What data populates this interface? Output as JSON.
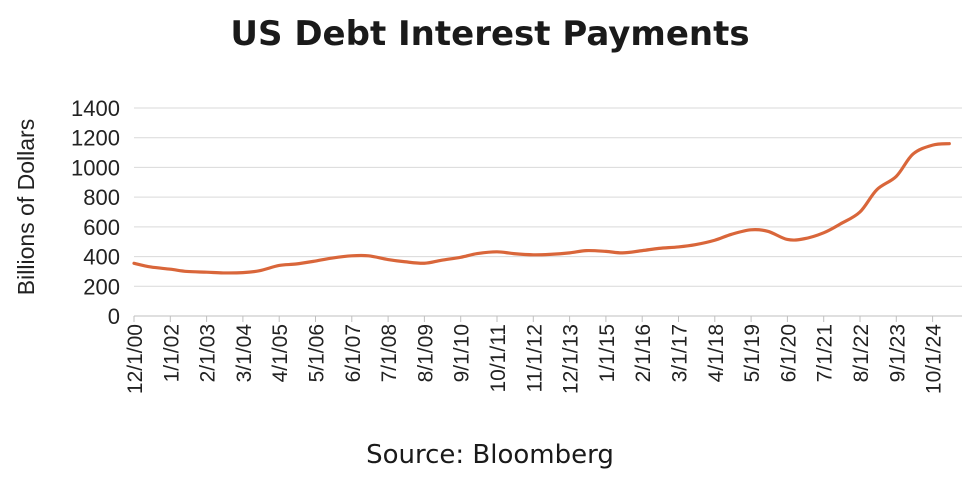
{
  "chart_data": {
    "type": "line",
    "title": "US Debt Interest Payments",
    "ylabel": "Billions of Dollars",
    "xlabel": "",
    "ylim": [
      0,
      1400
    ],
    "yticks": [
      0,
      200,
      400,
      600,
      800,
      1000,
      1200,
      1400
    ],
    "xticks": [
      "12/1/00",
      "1/1/02",
      "2/1/03",
      "3/1/04",
      "4/1/05",
      "5/1/06",
      "6/1/07",
      "7/1/08",
      "8/1/09",
      "9/1/10",
      "10/1/11",
      "11/1/12",
      "12/1/13",
      "1/1/15",
      "2/1/16",
      "3/1/17",
      "4/1/18",
      "5/1/19",
      "6/1/20",
      "7/1/21",
      "8/1/22",
      "9/1/23",
      "10/1/24"
    ],
    "grid": true,
    "line_color": "#d9663a",
    "series": [
      {
        "x": [
          "12/1/00",
          "6/1/01",
          "1/1/02",
          "7/1/02",
          "2/1/03",
          "8/1/03",
          "3/1/04",
          "9/1/04",
          "4/1/05",
          "10/1/05",
          "5/1/06",
          "11/1/06",
          "6/1/07",
          "12/1/07",
          "7/1/08",
          "1/1/09",
          "8/1/09",
          "2/1/10",
          "9/1/10",
          "3/1/11",
          "10/1/11",
          "4/1/12",
          "11/1/12",
          "5/1/13",
          "12/1/13",
          "6/1/14",
          "1/1/15",
          "7/1/15",
          "2/1/16",
          "8/1/16",
          "3/1/17",
          "9/1/17",
          "4/1/18",
          "10/1/18",
          "5/1/19",
          "11/1/19",
          "6/1/20",
          "12/1/20",
          "7/1/21",
          "1/1/22",
          "8/1/22",
          "2/1/23",
          "9/1/23",
          "3/1/24",
          "10/1/24",
          "4/1/25"
        ],
        "values": [
          355,
          330,
          315,
          300,
          295,
          290,
          292,
          305,
          340,
          350,
          370,
          390,
          405,
          405,
          380,
          365,
          355,
          375,
          395,
          420,
          432,
          420,
          412,
          415,
          425,
          440,
          435,
          425,
          440,
          455,
          465,
          480,
          510,
          550,
          580,
          570,
          515,
          520,
          560,
          620,
          700,
          850,
          940,
          1090,
          1150,
          1160
        ]
      }
    ]
  },
  "source": "Source: Bloomberg"
}
